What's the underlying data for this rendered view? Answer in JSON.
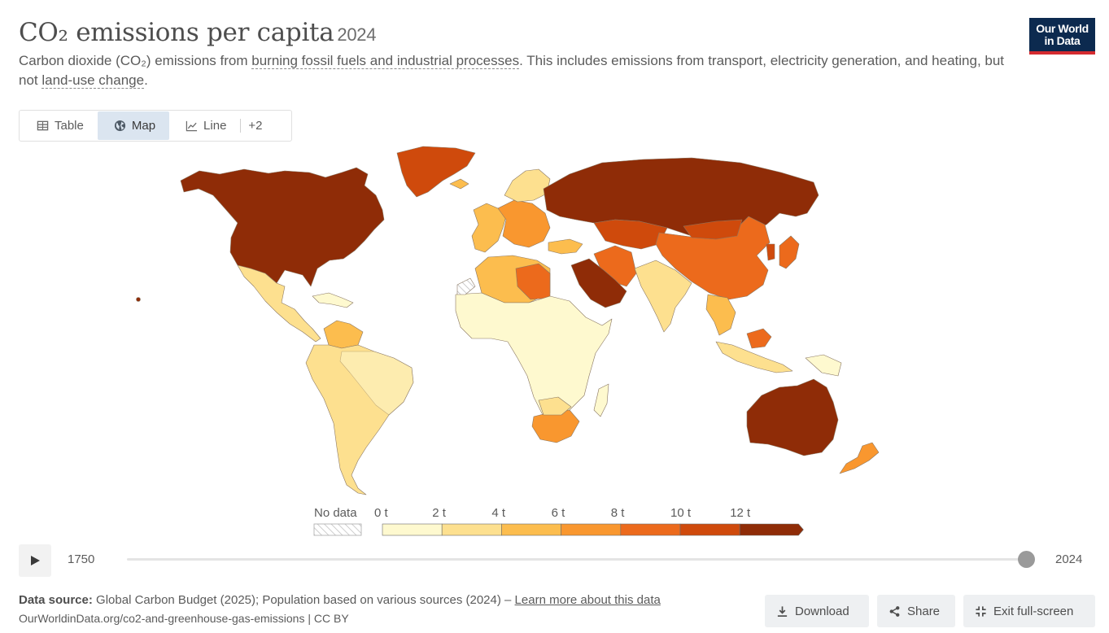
{
  "header": {
    "title": "CO₂ emissions per capita",
    "year": "2024",
    "subtitle_prefix": "Carbon dioxide (CO₂) emissions from ",
    "subtitle_link1": "burning fossil fuels and industrial processes",
    "subtitle_middle": ". This includes emissions from transport, electricity generation, and heating, but not ",
    "subtitle_link2": "land-use change",
    "subtitle_suffix": "."
  },
  "logo": {
    "line1": "Our World",
    "line2": "in Data"
  },
  "tabs": [
    {
      "label": "Table",
      "icon": "table-icon",
      "active": false
    },
    {
      "label": "Map",
      "icon": "globe-icon",
      "active": true
    },
    {
      "label": "Line",
      "icon": "line-chart-icon",
      "active": false
    }
  ],
  "tabs_more": "+2",
  "legend": {
    "no_data_label": "No data",
    "bins": [
      {
        "label": "0 t",
        "color": "#fef9cf"
      },
      {
        "label": "2 t",
        "color": "#fde08f"
      },
      {
        "label": "4 t",
        "color": "#fcbd4e"
      },
      {
        "label": "6 t",
        "color": "#f9972f"
      },
      {
        "label": "8 t",
        "color": "#ec6a1c"
      },
      {
        "label": "10 t",
        "color": "#cf4a0c"
      },
      {
        "label": "12 t",
        "color": "#8f2c07"
      }
    ]
  },
  "timeline": {
    "start": "1750",
    "end": "2024",
    "position": 1.0
  },
  "footer": {
    "source_label": "Data source:",
    "source_text": " Global Carbon Budget (2025); Population based on various sources (2024) – ",
    "source_link": "Learn more about this data",
    "url": "OurWorldinData.org/co2-and-greenhouse-gas-emissions | CC BY"
  },
  "buttons": {
    "download": "Download",
    "share": "Share",
    "exit": "Exit full-screen"
  },
  "colors": {
    "ocean": "#ffffff",
    "border": "#7a6a58",
    "no_data": "#eeeeee"
  }
}
